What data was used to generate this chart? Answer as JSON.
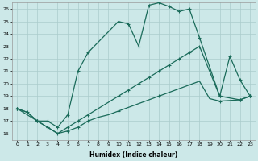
{
  "xlabel": "Humidex (Indice chaleur)",
  "bg_color": "#cce8e8",
  "grid_color": "#aacccc",
  "line_color": "#1a6b5a",
  "xlim": [
    -0.5,
    23.5
  ],
  "ylim": [
    15.5,
    26.5
  ],
  "line1_x": [
    0,
    1,
    2,
    3,
    4,
    5,
    6,
    7,
    8,
    9,
    10,
    11,
    12,
    13,
    14,
    15,
    16,
    17,
    18,
    19,
    20,
    22,
    23
  ],
  "line1_y": [
    18.0,
    17.7,
    17.0,
    16.5,
    16.0,
    16.2,
    16.5,
    17.0,
    17.3,
    17.5,
    17.8,
    18.1,
    18.4,
    18.7,
    19.0,
    19.3,
    19.6,
    19.9,
    20.2,
    18.8,
    18.6,
    18.7,
    19.0
  ],
  "line2_x": [
    0,
    1,
    2,
    3,
    4,
    5,
    6,
    7,
    8,
    9,
    10,
    11,
    12,
    13,
    14,
    15,
    16,
    17,
    18,
    20,
    22,
    23
  ],
  "line2_y": [
    18.0,
    17.7,
    17.0,
    16.5,
    16.0,
    16.5,
    17.0,
    17.5,
    18.0,
    18.5,
    19.0,
    19.5,
    20.0,
    20.5,
    21.0,
    21.5,
    22.0,
    22.5,
    23.0,
    19.0,
    18.7,
    19.0
  ],
  "line3_x": [
    0,
    2,
    3,
    4,
    5,
    6,
    7,
    10,
    11,
    12,
    13,
    14,
    15,
    16,
    17,
    18,
    20,
    21,
    22,
    23
  ],
  "line3_y": [
    18.0,
    17.0,
    17.0,
    16.5,
    17.5,
    21.0,
    22.5,
    25.0,
    24.8,
    23.0,
    26.3,
    26.5,
    26.2,
    25.8,
    26.0,
    23.7,
    19.0,
    22.2,
    20.3,
    19.0
  ],
  "m1_x": [
    0,
    1,
    2,
    3,
    4,
    5,
    6,
    7,
    10,
    14,
    20,
    22,
    23
  ],
  "m1_y": [
    18.0,
    17.7,
    17.0,
    16.5,
    16.0,
    16.2,
    16.5,
    17.0,
    17.8,
    19.0,
    18.6,
    18.7,
    19.0
  ],
  "m2_x": [
    0,
    2,
    3,
    5,
    6,
    7,
    10,
    11,
    12,
    13,
    14,
    15,
    16,
    17,
    18,
    20,
    22,
    23
  ],
  "m2_y": [
    18.0,
    17.0,
    16.5,
    16.5,
    17.0,
    17.5,
    19.0,
    19.5,
    20.0,
    20.5,
    21.0,
    21.5,
    22.0,
    22.5,
    23.0,
    19.0,
    18.7,
    19.0
  ],
  "m3_x": [
    0,
    2,
    3,
    4,
    5,
    6,
    7,
    10,
    11,
    12,
    13,
    14,
    15,
    16,
    17,
    18,
    20,
    21,
    22,
    23
  ],
  "m3_y": [
    18.0,
    17.0,
    17.0,
    16.5,
    17.5,
    21.0,
    22.5,
    25.0,
    24.8,
    23.0,
    26.3,
    26.5,
    26.2,
    25.8,
    26.0,
    23.7,
    19.0,
    22.2,
    20.3,
    19.0
  ]
}
